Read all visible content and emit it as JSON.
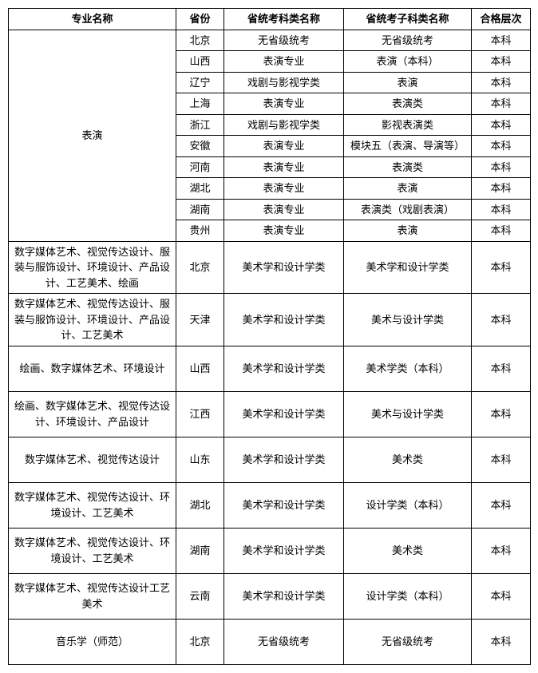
{
  "columns": [
    "专业名称",
    "省份",
    "省统考科类名称",
    "省统考子科类名称",
    "合格层次"
  ],
  "groups": [
    {
      "major": "表演",
      "rowHeight": "short",
      "rows": [
        {
          "province": "北京",
          "exam": "无省级统考",
          "sub": "无省级统考",
          "level": "本科"
        },
        {
          "province": "山西",
          "exam": "表演专业",
          "sub": "表演（本科）",
          "level": "本科"
        },
        {
          "province": "辽宁",
          "exam": "戏剧与影视学类",
          "sub": "表演",
          "level": "本科"
        },
        {
          "province": "上海",
          "exam": "表演专业",
          "sub": "表演类",
          "level": "本科"
        },
        {
          "province": "浙江",
          "exam": "戏剧与影视学类",
          "sub": "影视表演类",
          "level": "本科"
        },
        {
          "province": "安徽",
          "exam": "表演专业",
          "sub": "模块五（表演、导演等）",
          "level": "本科"
        },
        {
          "province": "河南",
          "exam": "表演专业",
          "sub": "表演类",
          "level": "本科"
        },
        {
          "province": "湖北",
          "exam": "表演专业",
          "sub": "表演",
          "level": "本科"
        },
        {
          "province": "湖南",
          "exam": "表演专业",
          "sub": "表演类（戏剧表演）",
          "level": "本科"
        },
        {
          "province": "贵州",
          "exam": "表演专业",
          "sub": "表演",
          "level": "本科"
        }
      ]
    },
    {
      "major": "数字媒体艺术、视觉传达设计、服装与服饰设计、环境设计、产品设计、工艺美术、绘画",
      "rowHeight": "tall",
      "rows": [
        {
          "province": "北京",
          "exam": "美术学和设计学类",
          "sub": "美术学和设计学类",
          "level": "本科"
        }
      ]
    },
    {
      "major": "数字媒体艺术、视觉传达设计、服装与服饰设计、环境设计、产品设计、工艺美术",
      "rowHeight": "tall",
      "rows": [
        {
          "province": "天津",
          "exam": "美术学和设计学类",
          "sub": "美术与设计学类",
          "level": "本科"
        }
      ]
    },
    {
      "major": "绘画、数字媒体艺术、环境设计",
      "rowHeight": "tall",
      "rows": [
        {
          "province": "山西",
          "exam": "美术学和设计学类",
          "sub": "美术学类（本科）",
          "level": "本科"
        }
      ]
    },
    {
      "major": "绘画、数字媒体艺术、视觉传达设计、环境设计、产品设计",
      "rowHeight": "tall",
      "rows": [
        {
          "province": "江西",
          "exam": "美术学和设计学类",
          "sub": "美术与设计学类",
          "level": "本科"
        }
      ]
    },
    {
      "major": "数字媒体艺术、视觉传达设计",
      "rowHeight": "tall",
      "rows": [
        {
          "province": "山东",
          "exam": "美术学和设计学类",
          "sub": "美术类",
          "level": "本科"
        }
      ]
    },
    {
      "major": "数字媒体艺术、视觉传达设计、环境设计、工艺美术",
      "rowHeight": "tall",
      "rows": [
        {
          "province": "湖北",
          "exam": "美术学和设计学类",
          "sub": "设计学类（本科）",
          "level": "本科"
        }
      ]
    },
    {
      "major": "数字媒体艺术、视觉传达设计、环境设计、工艺美术",
      "rowHeight": "tall",
      "rows": [
        {
          "province": "湖南",
          "exam": "美术学和设计学类",
          "sub": "美术类",
          "level": "本科"
        }
      ]
    },
    {
      "major": "数字媒体艺术、视觉传达设计工艺美术",
      "rowHeight": "tall",
      "rows": [
        {
          "province": "云南",
          "exam": "美术学和设计学类",
          "sub": "设计学类（本科）",
          "level": "本科"
        }
      ]
    },
    {
      "major": "音乐学（师范）",
      "rowHeight": "tall",
      "rows": [
        {
          "province": "北京",
          "exam": "无省级统考",
          "sub": "无省级统考",
          "level": "本科"
        }
      ]
    }
  ]
}
